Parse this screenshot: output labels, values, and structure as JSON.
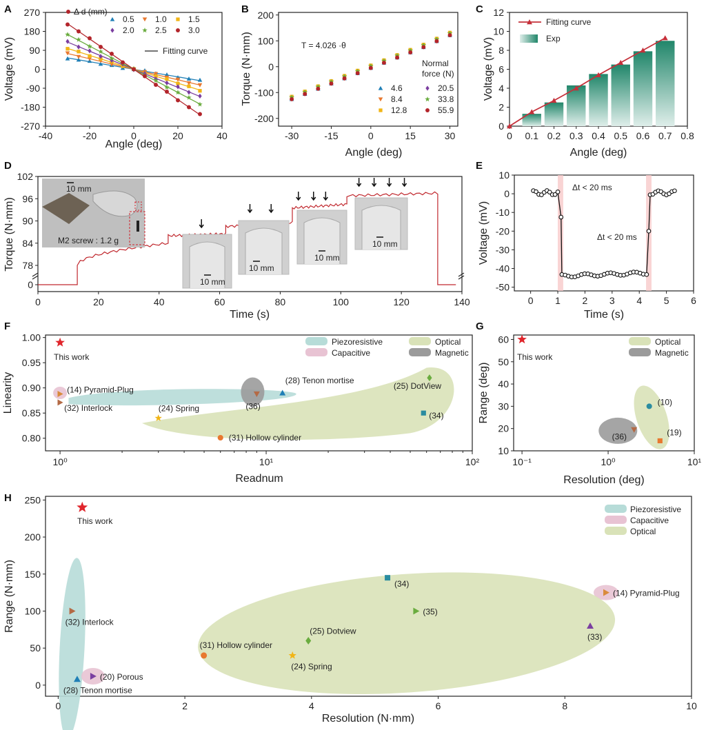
{
  "colors": {
    "blue": "#1f7fb6",
    "orange": "#e8782f",
    "yellow": "#f1b516",
    "purple": "#7b3ea0",
    "green": "#6aac3f",
    "darkred": "#b3252b",
    "teal_bar": "#21866a",
    "line_red": "#c5303a",
    "trace_red": "#c0272d",
    "star_red": "#e0262c",
    "piezo": "#b7dcd8",
    "capac": "#e8c3d3",
    "optical": "#d9e2b8",
    "magnetic": "#9b9b9b",
    "marker_brown": "#b46a45",
    "marker_tri_orange": "#d98b3c"
  },
  "chart_data": [
    {
      "id": "A",
      "type": "scatter",
      "xlabel": "Angle (deg)",
      "ylabel": "Voltage (mV)",
      "xlim": [
        -40,
        40
      ],
      "ylim": [
        -270,
        270
      ],
      "xticks": [
        "-40",
        "-20",
        "0",
        "20",
        "40"
      ],
      "yticks": [
        "270",
        "180",
        "90",
        "0",
        "-90",
        "-180",
        "-270"
      ],
      "legend_title": "Δ d (mm)",
      "fit_label": "Fitting curve",
      "series": [
        {
          "name": "0.5",
          "color": "blue",
          "marker": "triangle",
          "slope": -1.8
        },
        {
          "name": "1.0",
          "color": "orange",
          "marker": "triangle-down",
          "slope": -2.5
        },
        {
          "name": "1.5",
          "color": "yellow",
          "marker": "square",
          "slope": -3.3
        },
        {
          "name": "2.0",
          "color": "purple",
          "marker": "diamond",
          "slope": -4.3
        },
        {
          "name": "2.5",
          "color": "green",
          "marker": "star",
          "slope": -5.5
        },
        {
          "name": "3.0",
          "color": "darkred",
          "marker": "circle",
          "slope": -7.2
        }
      ],
      "x": [
        -30,
        -25,
        -20,
        -15,
        -10,
        -5,
        0,
        5,
        10,
        15,
        20,
        25,
        30
      ]
    },
    {
      "id": "B",
      "type": "scatter",
      "xlabel": "Angle (deg)",
      "ylabel": "Torque (N·mm)",
      "xlim": [
        -35,
        33
      ],
      "ylim": [
        -230,
        210
      ],
      "xticks": [
        "-30",
        "-15",
        "0",
        "15",
        "30"
      ],
      "yticks": [
        "200",
        "100",
        "0",
        "-100",
        "-200"
      ],
      "equation": "T = 4.026 ·θ",
      "legend_title_1": "Normal",
      "legend_title_2": "force (N)",
      "series": [
        {
          "name": "4.6",
          "color": "blue",
          "marker": "triangle"
        },
        {
          "name": "8.4",
          "color": "orange",
          "marker": "triangle-down"
        },
        {
          "name": "12.8",
          "color": "yellow",
          "marker": "square"
        },
        {
          "name": "20.5",
          "color": "purple",
          "marker": "diamond"
        },
        {
          "name": "33.8",
          "color": "green",
          "marker": "star"
        },
        {
          "name": "55.9",
          "color": "darkred",
          "marker": "circle"
        }
      ],
      "x": [
        -30,
        -25,
        -20,
        -15,
        -10,
        -5,
        0,
        5,
        10,
        15,
        20,
        25,
        30
      ],
      "slope": 4.026
    },
    {
      "id": "C",
      "type": "bar",
      "xlabel": "Angle (deg)",
      "ylabel": "Voltage (mV)",
      "xlim": [
        0,
        0.8
      ],
      "ylim": [
        0,
        12
      ],
      "xticks": [
        "0",
        "0.1",
        "0.2",
        "0.3",
        "0.4",
        "0.5",
        "0.6",
        "0.7",
        "0.8"
      ],
      "yticks": [
        "0",
        "2",
        "4",
        "6",
        "8",
        "10",
        "12"
      ],
      "legend": [
        "Fitting curve",
        "Exp"
      ],
      "bars_x": [
        0.1,
        0.2,
        0.3,
        0.4,
        0.5,
        0.6,
        0.7
      ],
      "bars_y": [
        1.3,
        2.5,
        4.3,
        5.5,
        6.5,
        7.9,
        9.0
      ],
      "fit_x": [
        0,
        0.1,
        0.2,
        0.3,
        0.4,
        0.5,
        0.6,
        0.7
      ],
      "fit_y": [
        0,
        1.5,
        2.7,
        4.0,
        5.4,
        6.7,
        8.0,
        9.3
      ]
    },
    {
      "id": "D",
      "type": "line",
      "xlabel": "Time (s)",
      "ylabel": "Torque (N·mm)",
      "xlim": [
        0,
        140
      ],
      "xticks": [
        "0",
        "20",
        "40",
        "60",
        "80",
        "100",
        "120",
        "140"
      ],
      "yticks": [
        "102",
        "96",
        "90",
        "84",
        "78",
        "0"
      ],
      "annotations": [
        "10 mm",
        "M2 screw : 1.2 g",
        "10 mm",
        "10 mm",
        "10 mm",
        "10 mm"
      ],
      "arrow_times": [
        54,
        70,
        77,
        86,
        91,
        95,
        106,
        111,
        116,
        121
      ],
      "steps": [
        {
          "t0": 13,
          "t1": 43,
          "y0": 78,
          "y1": 84
        },
        {
          "t0": 43,
          "t1": 62,
          "y0": 86,
          "y1": 86.5
        },
        {
          "t0": 62,
          "t1": 84,
          "y0": 88.5,
          "y1": 89.5
        },
        {
          "t0": 84,
          "t1": 102,
          "y0": 93.5,
          "y1": 94.5
        },
        {
          "t0": 102,
          "t1": 132,
          "y0": 96.8,
          "y1": 97.5
        }
      ]
    },
    {
      "id": "E",
      "type": "line",
      "xlabel": "Time (s)",
      "ylabel": "Voltage (mV)",
      "xlim": [
        -0.6,
        6
      ],
      "ylim": [
        -52,
        10
      ],
      "xticks": [
        "0",
        "1",
        "2",
        "3",
        "4",
        "5",
        "6"
      ],
      "yticks": [
        "10",
        "0",
        "-10",
        "-20",
        "-30",
        "-40",
        "-50"
      ],
      "annotations": [
        "Δt < 20 ms",
        "Δt < 20 ms"
      ],
      "fall_time": 1.1,
      "rise_time": 4.35,
      "high": 0.5,
      "low": -45
    },
    {
      "id": "F",
      "type": "scatter",
      "xlabel": "Readnum",
      "ylabel": "Linearity",
      "xscale": "log",
      "xlim": [
        0.85,
        100
      ],
      "ylim": [
        0.775,
        1.005
      ],
      "xticks": [
        "10⁰",
        "10¹",
        "10²"
      ],
      "yticks": [
        "1.00",
        "0.95",
        "0.90",
        "0.85",
        "0.80"
      ],
      "legend": [
        "Piezoresistive",
        "Capacitive",
        "Optical",
        "Magnetic"
      ],
      "this_work_label": "This work",
      "points": [
        {
          "label": "(14) Pyramid-Plug",
          "x": 1.0,
          "y": 0.888,
          "marker": "triangle-right",
          "color": "marker_tri_orange"
        },
        {
          "label": "(32) Interlock",
          "x": 1.0,
          "y": 0.871,
          "marker": "triangle-right",
          "color": "marker_brown"
        },
        {
          "label": "(28) Tenon mortise",
          "x": 12,
          "y": 0.89,
          "marker": "triangle",
          "color": "blue"
        },
        {
          "label": "(36)",
          "x": 9,
          "y": 0.888,
          "marker": "triangle-down",
          "color": "marker_brown"
        },
        {
          "label": "(24) Spring",
          "x": 3.0,
          "y": 0.84,
          "marker": "star",
          "color": "yellow"
        },
        {
          "label": "(31) Hollow cylinder",
          "x": 6,
          "y": 0.801,
          "marker": "circle",
          "color": "orange"
        },
        {
          "label": "(25) DotView",
          "x": 62,
          "y": 0.92,
          "marker": "diamond",
          "color": "green"
        },
        {
          "label": "(34)",
          "x": 58,
          "y": 0.85,
          "marker": "square",
          "color": "teal"
        }
      ],
      "this_work": {
        "x": 1.0,
        "y": 0.99
      }
    },
    {
      "id": "G",
      "type": "scatter",
      "xlabel": "Resolution (deg)",
      "ylabel": "Range (deg)",
      "xscale": "log",
      "xlim": [
        0.08,
        10
      ],
      "ylim": [
        10,
        62
      ],
      "xticks": [
        "10⁻¹",
        "10⁰",
        "10¹"
      ],
      "yticks": [
        "60",
        "50",
        "40",
        "30",
        "20",
        "10"
      ],
      "legend": [
        "Optical",
        "Magnetic"
      ],
      "this_work_label": "This work",
      "points": [
        {
          "label": "(10)",
          "x": 3.0,
          "y": 30,
          "marker": "circle",
          "color": "teal"
        },
        {
          "label": "(19)",
          "x": 4.0,
          "y": 14.5,
          "marker": "square",
          "color": "orange"
        },
        {
          "label": "(36)",
          "x": 2.0,
          "y": 19.5,
          "marker": "triangle-down",
          "color": "marker_brown"
        }
      ],
      "this_work": {
        "x": 0.1,
        "y": 60
      }
    },
    {
      "id": "H",
      "type": "scatter",
      "xlabel": "Resolution (N·mm)",
      "ylabel": "Range (N·mm)",
      "xlim": [
        -0.2,
        10
      ],
      "ylim": [
        -15,
        255
      ],
      "xticks": [
        "0",
        "2",
        "4",
        "6",
        "8",
        "10"
      ],
      "yticks": [
        "250",
        "200",
        "150",
        "100",
        "50",
        "0"
      ],
      "legend": [
        "Piezoresistive",
        "Capacitive",
        "Optical"
      ],
      "this_work_label": "This work",
      "points": [
        {
          "label": "(32) Interlock",
          "x": 0.22,
          "y": 100,
          "marker": "triangle-right",
          "color": "marker_brown"
        },
        {
          "label": "(20) Porous",
          "x": 0.55,
          "y": 12,
          "marker": "triangle-right",
          "color": "purple"
        },
        {
          "label": "(28) Tenon mortise",
          "x": 0.3,
          "y": 8,
          "marker": "triangle",
          "color": "blue"
        },
        {
          "label": "(31) Hollow cylinder",
          "x": 2.3,
          "y": 40,
          "marker": "circle",
          "color": "orange"
        },
        {
          "label": "(24) Spring",
          "x": 3.7,
          "y": 40,
          "marker": "star",
          "color": "yellow"
        },
        {
          "label": "(25) Dotview",
          "x": 3.95,
          "y": 60,
          "marker": "diamond",
          "color": "green"
        },
        {
          "label": "(34)",
          "x": 5.2,
          "y": 145,
          "marker": "square",
          "color": "teal"
        },
        {
          "label": "(35)",
          "x": 5.65,
          "y": 100,
          "marker": "triangle-right",
          "color": "green"
        },
        {
          "label": "(33)",
          "x": 8.4,
          "y": 80,
          "marker": "triangle",
          "color": "purple"
        },
        {
          "label": "(14) Pyramid-Plug",
          "x": 8.65,
          "y": 125,
          "marker": "triangle-right",
          "color": "marker_tri_orange"
        }
      ],
      "this_work": {
        "x": 0.38,
        "y": 240
      }
    }
  ],
  "panel_letters": [
    "A",
    "B",
    "C",
    "D",
    "E",
    "F",
    "G",
    "H"
  ]
}
